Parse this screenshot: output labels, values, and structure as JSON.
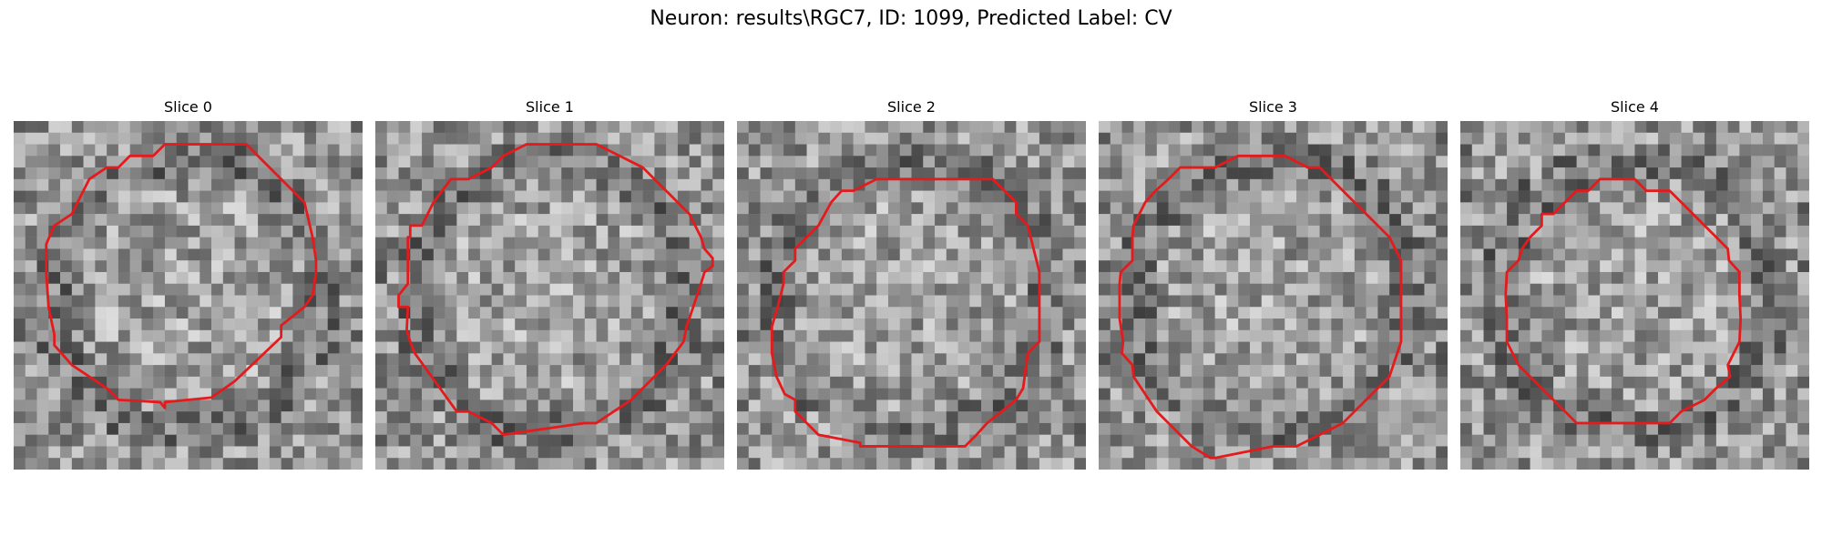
{
  "figure": {
    "title": "Neuron: results\\RGC7, ID: 1099, Predicted Label: CV",
    "contour_color": "#e41a1c",
    "colormap": "gray",
    "panels": [
      {
        "title": "Slice 0",
        "image": "grayscale microscopy patch with outlined cell body"
      },
      {
        "title": "Slice 1",
        "image": "grayscale microscopy patch with outlined cell body"
      },
      {
        "title": "Slice 2",
        "image": "grayscale microscopy patch with outlined cell body"
      },
      {
        "title": "Slice 3",
        "image": "grayscale microscopy patch with outlined cell body"
      },
      {
        "title": "Slice 4",
        "image": "grayscale microscopy patch with outlined cell body"
      }
    ]
  }
}
